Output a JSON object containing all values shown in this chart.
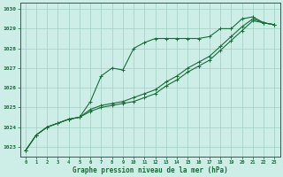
{
  "title": "Graphe pression niveau de la mer (hPa)",
  "background_color": "#cceee6",
  "grid_color": "#aad4c8",
  "line_color": "#1a6b3a",
  "xlim": [
    -0.5,
    23.5
  ],
  "ylim": [
    1022.5,
    1030.3
  ],
  "yticks": [
    1023,
    1024,
    1025,
    1026,
    1027,
    1028,
    1029,
    1030
  ],
  "xticks": [
    0,
    1,
    2,
    3,
    4,
    5,
    6,
    7,
    8,
    9,
    10,
    11,
    12,
    13,
    14,
    15,
    16,
    17,
    18,
    19,
    20,
    21,
    22,
    23
  ],
  "series1_x": [
    0,
    1,
    2,
    3,
    4,
    5,
    6,
    7,
    8,
    9,
    10,
    11,
    12,
    13,
    14,
    15,
    16,
    17,
    18,
    19,
    20,
    21,
    22,
    23
  ],
  "series1_y": [
    1022.8,
    1023.6,
    1024.0,
    1024.2,
    1024.4,
    1024.5,
    1024.8,
    1025.0,
    1025.1,
    1025.2,
    1025.3,
    1025.5,
    1025.7,
    1026.1,
    1026.4,
    1026.8,
    1027.1,
    1027.4,
    1027.9,
    1028.4,
    1028.9,
    1029.4,
    1029.3,
    1029.2
  ],
  "series2_x": [
    0,
    1,
    2,
    3,
    4,
    5,
    6,
    7,
    8,
    9,
    10,
    11,
    12,
    13,
    14,
    15,
    16,
    17,
    18,
    19,
    20,
    21,
    22,
    23
  ],
  "series2_y": [
    1022.8,
    1023.6,
    1024.0,
    1024.2,
    1024.4,
    1024.5,
    1024.9,
    1025.1,
    1025.2,
    1025.3,
    1025.5,
    1025.7,
    1025.9,
    1026.3,
    1026.6,
    1027.0,
    1027.3,
    1027.6,
    1028.1,
    1028.6,
    1029.1,
    1029.5,
    1029.3,
    1029.2
  ],
  "series3_x": [
    0,
    1,
    2,
    3,
    4,
    5,
    6,
    7,
    8,
    9,
    10,
    11,
    12,
    13,
    14,
    15,
    16,
    17,
    18,
    19,
    20,
    21,
    22,
    23
  ],
  "series3_y": [
    1022.8,
    1023.6,
    1024.0,
    1024.2,
    1024.4,
    1024.5,
    1025.3,
    1026.6,
    1027.0,
    1026.9,
    1028.0,
    1028.3,
    1028.5,
    1028.5,
    1028.5,
    1028.5,
    1028.5,
    1028.6,
    1029.0,
    1029.0,
    1029.5,
    1029.6,
    1029.3,
    1029.2
  ]
}
